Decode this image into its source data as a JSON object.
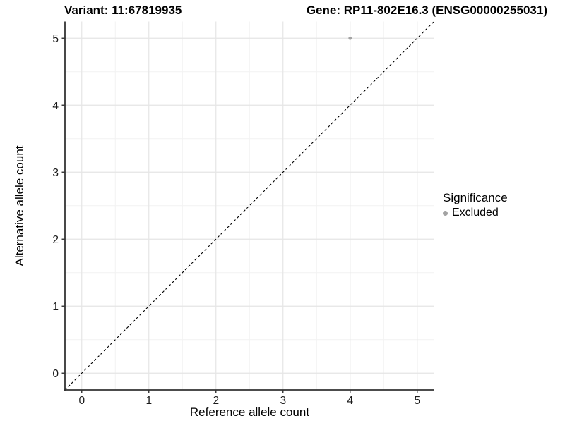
{
  "titles": {
    "variant": "Variant: 11:67819935",
    "gene": "Gene: RP11-802E16.3 (ENSG00000255031)"
  },
  "colors": {
    "background": "#ffffff",
    "axis_line": "#333333",
    "tick_mark": "#333333",
    "tick_label": "#1a1a1a",
    "grid_major": "#e5e5e5",
    "grid_minor": "#f2f2f2",
    "reference_line": "#000000",
    "excluded_point": "#a3a3a3"
  },
  "chart_data": {
    "type": "scatter",
    "title": "Variant: 11:67819935   Gene: RP11-802E16.3 (ENSG00000255031)",
    "xlabel": "Reference allele count",
    "ylabel": "Alternative allele count",
    "xlim": [
      -0.25,
      5.25
    ],
    "ylim": [
      -0.25,
      5.25
    ],
    "x_ticks": [
      0,
      1,
      2,
      3,
      4,
      5
    ],
    "y_ticks": [
      0,
      1,
      2,
      3,
      4,
      5
    ],
    "x_minor_ticks": [
      0.5,
      1.5,
      2.5,
      3.5,
      4.5
    ],
    "y_minor_ticks": [
      0.5,
      1.5,
      2.5,
      3.5,
      4.5
    ],
    "grid": true,
    "series": [
      {
        "name": "Excluded",
        "color": "#a3a3a3",
        "points": [
          {
            "x": 4,
            "y": 5
          }
        ]
      }
    ],
    "reference_line": {
      "description": "identity line y = x",
      "style": "dashed",
      "color": "#000000",
      "from": [
        -0.25,
        -0.25
      ],
      "to": [
        5.25,
        5.25
      ]
    },
    "legend": {
      "title": "Significance",
      "position": "right",
      "items": [
        {
          "label": "Excluded",
          "color": "#a3a3a3"
        }
      ]
    }
  }
}
